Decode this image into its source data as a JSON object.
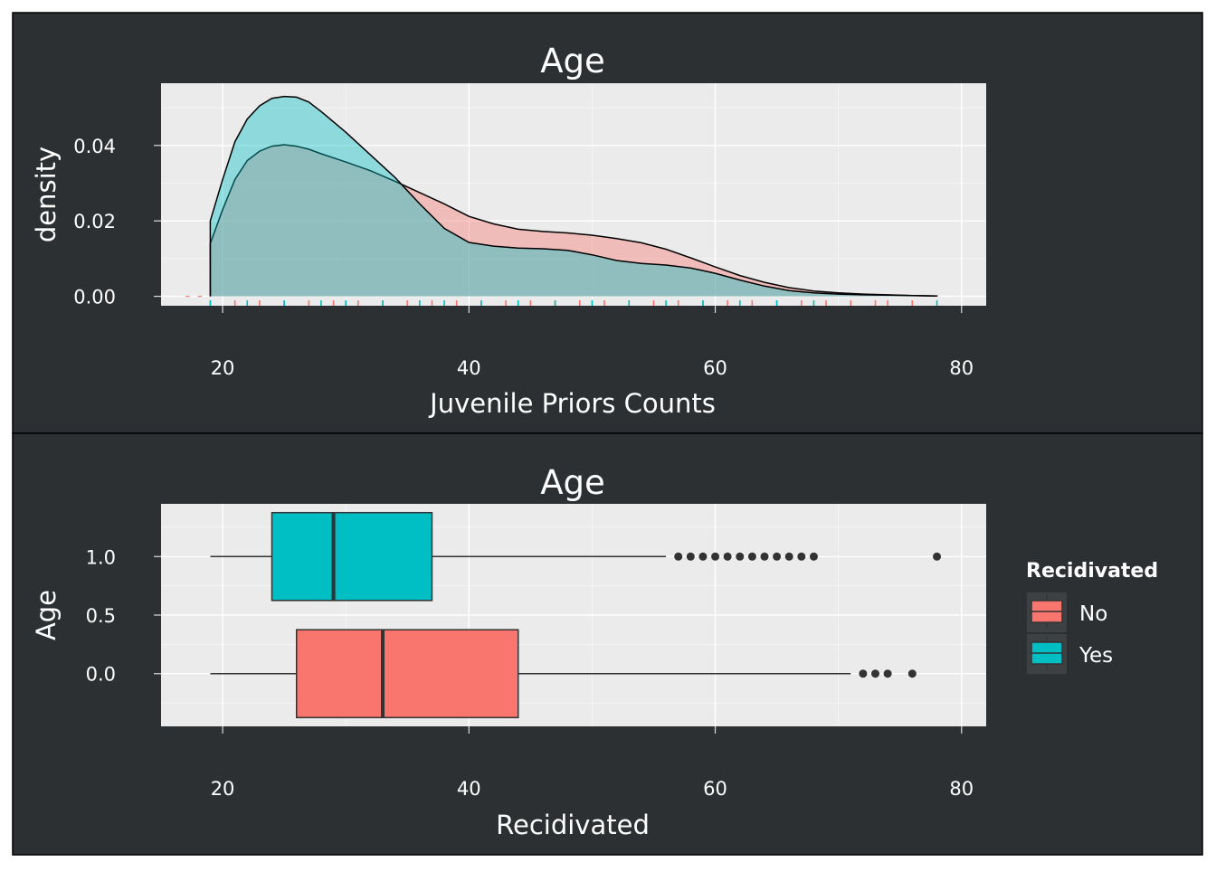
{
  "colors": {
    "no": "#f8766d",
    "yes": "#00bfc4",
    "panel": "#2d3032",
    "plot": "#ebebeb"
  },
  "chart_data": [
    {
      "type": "area",
      "subtype": "density",
      "title": "Age",
      "xlabel": "Juvenile Priors Counts",
      "ylabel": "density",
      "xlim": [
        15,
        82
      ],
      "ylim": [
        -0.0025,
        0.0565
      ],
      "xticks": [
        "20",
        "40",
        "60",
        "80"
      ],
      "yticks": [
        "0.00",
        "0.02",
        "0.04"
      ],
      "grid": true,
      "series": [
        {
          "group": "No",
          "color": "#f8766d",
          "points": [
            [
              19,
              0.014
            ],
            [
              20,
              0.023
            ],
            [
              21,
              0.031
            ],
            [
              22,
              0.036
            ],
            [
              23,
              0.0385
            ],
            [
              24,
              0.0398
            ],
            [
              25,
              0.0402
            ],
            [
              26,
              0.0398
            ],
            [
              27,
              0.039
            ],
            [
              28,
              0.0378
            ],
            [
              30,
              0.0356
            ],
            [
              32,
              0.0333
            ],
            [
              34,
              0.0305
            ],
            [
              36,
              0.0275
            ],
            [
              38,
              0.0245
            ],
            [
              40,
              0.0212
            ],
            [
              42,
              0.0192
            ],
            [
              44,
              0.0178
            ],
            [
              46,
              0.0172
            ],
            [
              48,
              0.0168
            ],
            [
              50,
              0.0162
            ],
            [
              52,
              0.0153
            ],
            [
              54,
              0.0142
            ],
            [
              56,
              0.0125
            ],
            [
              58,
              0.0102
            ],
            [
              60,
              0.0078
            ],
            [
              62,
              0.0055
            ],
            [
              64,
              0.0037
            ],
            [
              66,
              0.0023
            ],
            [
              68,
              0.0014
            ],
            [
              70,
              0.0009
            ],
            [
              72,
              0.0006
            ],
            [
              74,
              0.0004
            ],
            [
              76,
              0.0002
            ],
            [
              78,
              0.0001
            ]
          ]
        },
        {
          "group": "Yes",
          "color": "#00bfc4",
          "points": [
            [
              19,
              0.02
            ],
            [
              20,
              0.031
            ],
            [
              21,
              0.041
            ],
            [
              22,
              0.047
            ],
            [
              23,
              0.0505
            ],
            [
              24,
              0.0525
            ],
            [
              25,
              0.053
            ],
            [
              26,
              0.0528
            ],
            [
              27,
              0.0515
            ],
            [
              28,
              0.049
            ],
            [
              30,
              0.0435
            ],
            [
              32,
              0.0375
            ],
            [
              34,
              0.0315
            ],
            [
              36,
              0.0245
            ],
            [
              38,
              0.018
            ],
            [
              40,
              0.0143
            ],
            [
              42,
              0.0133
            ],
            [
              44,
              0.0128
            ],
            [
              46,
              0.0126
            ],
            [
              48,
              0.0122
            ],
            [
              50,
              0.011
            ],
            [
              52,
              0.0095
            ],
            [
              54,
              0.0087
            ],
            [
              56,
              0.0083
            ],
            [
              58,
              0.0075
            ],
            [
              60,
              0.0061
            ],
            [
              62,
              0.0043
            ],
            [
              64,
              0.0027
            ],
            [
              66,
              0.0015
            ],
            [
              68,
              0.0009
            ],
            [
              70,
              0.0006
            ],
            [
              72,
              0.0004
            ],
            [
              74,
              0.0003
            ],
            [
              76,
              0.0002
            ],
            [
              78,
              0.0001
            ]
          ]
        }
      ],
      "rug": {
        "No": [
          17,
          18,
          19,
          21,
          23,
          25,
          27,
          29,
          31,
          33,
          35,
          37,
          39,
          41,
          43,
          45,
          47,
          49,
          51,
          53,
          55,
          57,
          59,
          61,
          63,
          65,
          67,
          69,
          71,
          73,
          74,
          76
        ],
        "Yes": [
          19,
          22,
          25,
          28,
          30,
          33,
          36,
          38,
          41,
          44,
          47,
          50,
          53,
          56,
          59,
          62,
          65,
          68,
          78
        ]
      }
    },
    {
      "type": "boxplot",
      "title": "Age",
      "xlabel": "Recidivated",
      "ylabel": "Age",
      "xlim": [
        15,
        82
      ],
      "ylim": [
        -0.45,
        1.45
      ],
      "xticks": [
        "20",
        "40",
        "60",
        "80"
      ],
      "yticks": [
        "0.0",
        "0.5",
        "1.0"
      ],
      "grid": true,
      "legend": {
        "title": "Recidivated",
        "position": "right",
        "entries": [
          "No",
          "Yes"
        ]
      },
      "boxes": [
        {
          "group": "No",
          "color": "#f8766d",
          "y": 0.0,
          "whisker_low": 19,
          "q1": 26,
          "median": 33,
          "q3": 44,
          "whisker_high": 71,
          "outliers": [
            72,
            73,
            74,
            76
          ]
        },
        {
          "group": "Yes",
          "color": "#00bfc4",
          "y": 1.0,
          "whisker_low": 19,
          "q1": 24,
          "median": 29,
          "q3": 37,
          "whisker_high": 56,
          "outliers": [
            57,
            58,
            59,
            60,
            61,
            62,
            63,
            64,
            65,
            66,
            67,
            68,
            78
          ]
        }
      ]
    }
  ]
}
